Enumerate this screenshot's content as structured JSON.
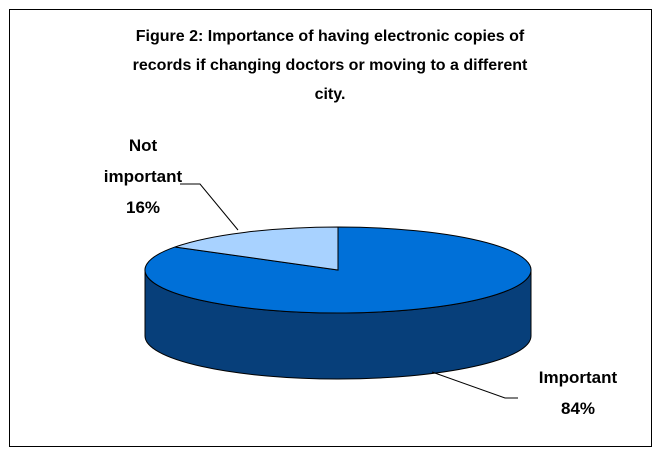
{
  "chart_data": {
    "type": "pie",
    "title": "Figure 2: Importance of having electronic copies of records if changing doctors or moving to a different city.",
    "title_lines": [
      "Figure 2: Importance of having electronic copies of",
      "records if changing doctors or moving to a different",
      "city."
    ],
    "slices": [
      {
        "label_lines": [
          "Important",
          "84%"
        ],
        "value": 84,
        "percent_label": "84%",
        "color": "#0070d8",
        "side_color": "#073f7a"
      },
      {
        "label_lines": [
          "Not",
          "important",
          "16%"
        ],
        "value": 16,
        "percent_label": "16%",
        "color": "#a8d2ff",
        "side_color": "#6f9fd6"
      }
    ],
    "style": "3d-pie",
    "legend": "none"
  }
}
